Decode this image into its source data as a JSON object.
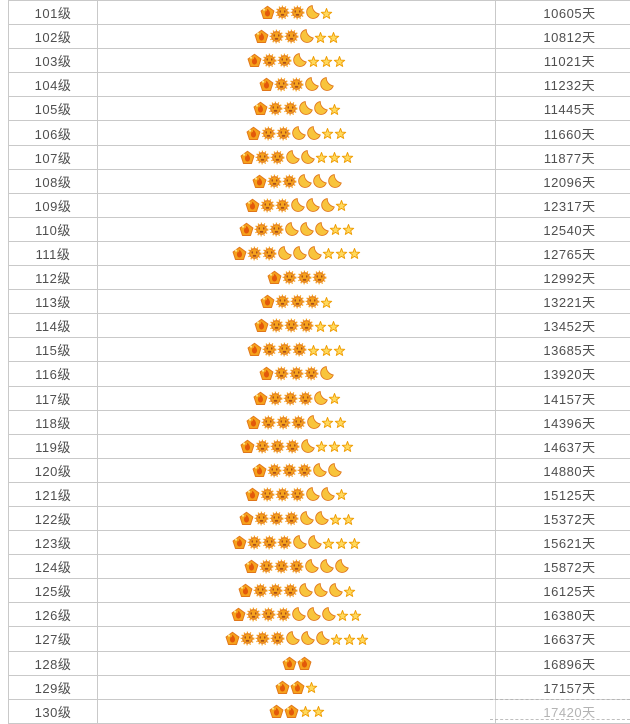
{
  "table": {
    "rows": [
      {
        "level": "101级",
        "days": "10605天",
        "icons": {
          "crown": 1,
          "sun": 2,
          "moon": 1,
          "star": 1
        }
      },
      {
        "level": "102级",
        "days": "10812天",
        "icons": {
          "crown": 1,
          "sun": 2,
          "moon": 1,
          "star": 2
        }
      },
      {
        "level": "103级",
        "days": "11021天",
        "icons": {
          "crown": 1,
          "sun": 2,
          "moon": 1,
          "star": 3
        }
      },
      {
        "level": "104级",
        "days": "11232天",
        "icons": {
          "crown": 1,
          "sun": 2,
          "moon": 2,
          "star": 0
        }
      },
      {
        "level": "105级",
        "days": "11445天",
        "icons": {
          "crown": 1,
          "sun": 2,
          "moon": 2,
          "star": 1
        }
      },
      {
        "level": "106级",
        "days": "11660天",
        "icons": {
          "crown": 1,
          "sun": 2,
          "moon": 2,
          "star": 2
        }
      },
      {
        "level": "107级",
        "days": "11877天",
        "icons": {
          "crown": 1,
          "sun": 2,
          "moon": 2,
          "star": 3
        }
      },
      {
        "level": "108级",
        "days": "12096天",
        "icons": {
          "crown": 1,
          "sun": 2,
          "moon": 3,
          "star": 0
        }
      },
      {
        "level": "109级",
        "days": "12317天",
        "icons": {
          "crown": 1,
          "sun": 2,
          "moon": 3,
          "star": 1
        }
      },
      {
        "level": "110级",
        "days": "12540天",
        "icons": {
          "crown": 1,
          "sun": 2,
          "moon": 3,
          "star": 2
        }
      },
      {
        "level": "111级",
        "days": "12765天",
        "icons": {
          "crown": 1,
          "sun": 2,
          "moon": 3,
          "star": 3
        }
      },
      {
        "level": "112级",
        "days": "12992天",
        "icons": {
          "crown": 1,
          "sun": 3,
          "moon": 0,
          "star": 0
        }
      },
      {
        "level": "113级",
        "days": "13221天",
        "icons": {
          "crown": 1,
          "sun": 3,
          "moon": 0,
          "star": 1
        }
      },
      {
        "level": "114级",
        "days": "13452天",
        "icons": {
          "crown": 1,
          "sun": 3,
          "moon": 0,
          "star": 2
        }
      },
      {
        "level": "115级",
        "days": "13685天",
        "icons": {
          "crown": 1,
          "sun": 3,
          "moon": 0,
          "star": 3
        }
      },
      {
        "level": "116级",
        "days": "13920天",
        "icons": {
          "crown": 1,
          "sun": 3,
          "moon": 1,
          "star": 0
        }
      },
      {
        "level": "117级",
        "days": "14157天",
        "icons": {
          "crown": 1,
          "sun": 3,
          "moon": 1,
          "star": 1
        }
      },
      {
        "level": "118级",
        "days": "14396天",
        "icons": {
          "crown": 1,
          "sun": 3,
          "moon": 1,
          "star": 2
        }
      },
      {
        "level": "119级",
        "days": "14637天",
        "icons": {
          "crown": 1,
          "sun": 3,
          "moon": 1,
          "star": 3
        }
      },
      {
        "level": "120级",
        "days": "14880天",
        "icons": {
          "crown": 1,
          "sun": 3,
          "moon": 2,
          "star": 0
        }
      },
      {
        "level": "121级",
        "days": "15125天",
        "icons": {
          "crown": 1,
          "sun": 3,
          "moon": 2,
          "star": 1
        }
      },
      {
        "level": "122级",
        "days": "15372天",
        "icons": {
          "crown": 1,
          "sun": 3,
          "moon": 2,
          "star": 2
        }
      },
      {
        "level": "123级",
        "days": "15621天",
        "icons": {
          "crown": 1,
          "sun": 3,
          "moon": 2,
          "star": 3
        }
      },
      {
        "level": "124级",
        "days": "15872天",
        "icons": {
          "crown": 1,
          "sun": 3,
          "moon": 3,
          "star": 0
        }
      },
      {
        "level": "125级",
        "days": "16125天",
        "icons": {
          "crown": 1,
          "sun": 3,
          "moon": 3,
          "star": 1
        }
      },
      {
        "level": "126级",
        "days": "16380天",
        "icons": {
          "crown": 1,
          "sun": 3,
          "moon": 3,
          "star": 2
        }
      },
      {
        "level": "127级",
        "days": "16637天",
        "icons": {
          "crown": 1,
          "sun": 3,
          "moon": 3,
          "star": 3
        }
      },
      {
        "level": "128级",
        "days": "16896天",
        "icons": {
          "crown": 2,
          "sun": 0,
          "moon": 0,
          "star": 0
        }
      },
      {
        "level": "129级",
        "days": "17157天",
        "icons": {
          "crown": 2,
          "sun": 0,
          "moon": 0,
          "star": 1
        }
      },
      {
        "level": "130级",
        "days": "17420天",
        "icons": {
          "crown": 2,
          "sun": 0,
          "moon": 0,
          "star": 2
        },
        "muted": true
      }
    ]
  },
  "icons": {
    "crown": {
      "name": "crown-icon",
      "shape": "pentagon-crown",
      "color": "#f6a21c"
    },
    "sun": {
      "name": "sun-icon",
      "shape": "sun-with-face",
      "color": "#f6a21c"
    },
    "moon": {
      "name": "moon-icon",
      "shape": "crescent-moon",
      "color": "#f8c43c"
    },
    "star": {
      "name": "star-icon",
      "shape": "five-point-star",
      "color": "#ffd95e"
    }
  },
  "colors": {
    "background": "#ffffff",
    "row_border": "#c9c9c9",
    "text": "#4f4f4f",
    "muted_text": "#939393",
    "icon_outline": "#e0761a",
    "icon_face": "#a8501d"
  }
}
